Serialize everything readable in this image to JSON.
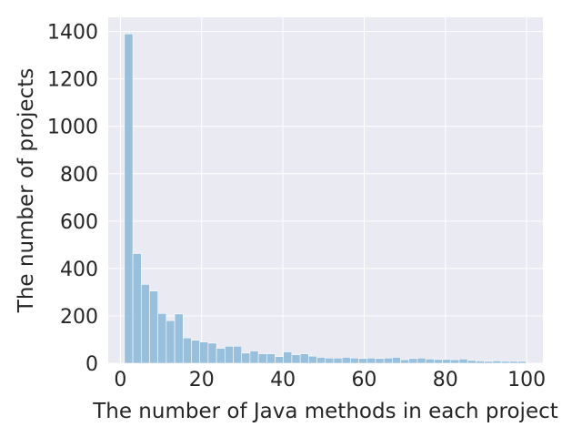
{
  "chart_data": {
    "type": "bar",
    "title": "",
    "xlabel": "The number of Java methods in each project",
    "ylabel": "The number of projects",
    "xlim": [
      -3,
      104
    ],
    "ylim": [
      0,
      1460
    ],
    "grid": true,
    "x_ticks": [
      0,
      20,
      40,
      60,
      80,
      100
    ],
    "y_ticks": [
      0,
      200,
      400,
      600,
      800,
      1000,
      1200,
      1400
    ],
    "bin_start": 1,
    "bin_width": 2.06,
    "values": [
      1390,
      463,
      333,
      305,
      210,
      180,
      208,
      107,
      97,
      90,
      85,
      63,
      72,
      72,
      43,
      52,
      40,
      40,
      28,
      48,
      36,
      40,
      30,
      25,
      22,
      22,
      25,
      22,
      20,
      22,
      20,
      22,
      25,
      15,
      20,
      22,
      18,
      16,
      16,
      15,
      18,
      12,
      10,
      8,
      10,
      8,
      8,
      8
    ]
  }
}
